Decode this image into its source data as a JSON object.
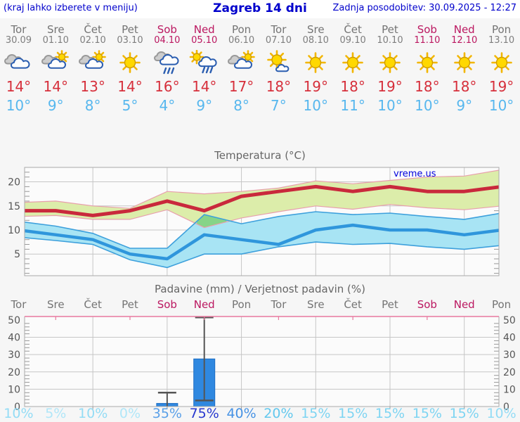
{
  "header": {
    "left_note": "(kraj lahko izberete v meniju)",
    "title": "Zagreb 14 dni",
    "updated": "Zadnja posodobitev: 30.09.2025 - 12:27"
  },
  "colors": {
    "header_blue": "#0000cc",
    "weekday": "#747474",
    "weekend": "#bb1760",
    "high_temp": "#d62f3b",
    "low_temp": "#57b7ee",
    "chart_title": "#666666",
    "axis_label": "#555555",
    "grid": "#c6c6c6",
    "plot_border": "#aaaaaa",
    "plot_bg": "#fbfbfb",
    "page_bg": "#f6f6f6",
    "max_band": "#dcedaa",
    "max_band_edge": "#e89fac",
    "max_line": "#c9293c",
    "min_band": "#a8e4f4",
    "min_band_edge": "#3da0dc",
    "min_line": "#2f96dc",
    "band_overlap": "#86d488",
    "bar_fill": "#2f88e0",
    "bar_edge": "#1f6fc4",
    "whisker": "#555555",
    "precip_top": "#e8799f",
    "watermark": "#0000dd"
  },
  "days": [
    {
      "name": "Tor",
      "date": "30.09",
      "weekend": false,
      "icon": "cloudy",
      "high": "14°",
      "low": "10°",
      "prob": "10%",
      "prob_color": "#93dcf5"
    },
    {
      "name": "Sre",
      "date": "01.10",
      "weekend": false,
      "icon": "sun-cloud",
      "high": "14°",
      "low": "9°",
      "prob": "5%",
      "prob_color": "#b0e6f8"
    },
    {
      "name": "Čet",
      "date": "02.10",
      "weekend": false,
      "icon": "sun-cloud",
      "high": "13°",
      "low": "8°",
      "prob": "10%",
      "prob_color": "#93dcf5"
    },
    {
      "name": "Pet",
      "date": "03.10",
      "weekend": false,
      "icon": "sunny",
      "high": "14°",
      "low": "5°",
      "prob": "0%",
      "prob_color": "#b0e6f8"
    },
    {
      "name": "Sob",
      "date": "04.10",
      "weekend": true,
      "icon": "rain",
      "high": "16°",
      "low": "4°",
      "prob": "35%",
      "prob_color": "#5aa0e8"
    },
    {
      "name": "Ned",
      "date": "05.10",
      "weekend": true,
      "icon": "sun-rain",
      "high": "14°",
      "low": "9°",
      "prob": "75%",
      "prob_color": "#2737cf"
    },
    {
      "name": "Pon",
      "date": "06.10",
      "weekend": false,
      "icon": "sun-cloud",
      "high": "17°",
      "low": "8°",
      "prob": "40%",
      "prob_color": "#4692e4"
    },
    {
      "name": "Tor",
      "date": "07.10",
      "weekend": false,
      "icon": "mostly-sunny",
      "high": "18°",
      "low": "7°",
      "prob": "20%",
      "prob_color": "#62c8ee"
    },
    {
      "name": "Sre",
      "date": "08.10",
      "weekend": false,
      "icon": "sunny",
      "high": "19°",
      "low": "10°",
      "prob": "15%",
      "prob_color": "#7dd4f2"
    },
    {
      "name": "Čet",
      "date": "09.10",
      "weekend": false,
      "icon": "sunny",
      "high": "18°",
      "low": "11°",
      "prob": "15%",
      "prob_color": "#7dd4f2"
    },
    {
      "name": "Pet",
      "date": "10.10",
      "weekend": false,
      "icon": "sunny",
      "high": "19°",
      "low": "10°",
      "prob": "15%",
      "prob_color": "#7dd4f2"
    },
    {
      "name": "Sob",
      "date": "11.10",
      "weekend": true,
      "icon": "sunny",
      "high": "18°",
      "low": "10°",
      "prob": "15%",
      "prob_color": "#7dd4f2"
    },
    {
      "name": "Ned",
      "date": "12.10",
      "weekend": true,
      "icon": "sunny",
      "high": "18°",
      "low": "9°",
      "prob": "15%",
      "prob_color": "#7dd4f2"
    },
    {
      "name": "Pon",
      "date": "13.10",
      "weekend": false,
      "icon": "sunny",
      "high": "19°",
      "low": "10°",
      "prob": "10%",
      "prob_color": "#93dcf5"
    }
  ],
  "chart_data": [
    {
      "type": "line",
      "title": "Temperatura (°C)",
      "watermark": "vreme.us",
      "categories": [
        "Tor",
        "Sre",
        "Čet",
        "Pet",
        "Sob",
        "Ned",
        "Pon",
        "Tor",
        "Sre",
        "Čet",
        "Pet",
        "Sob",
        "Ned",
        "Pon"
      ],
      "ylim": [
        0.5,
        23
      ],
      "yticks": [
        5,
        10,
        15,
        20
      ],
      "grid": true,
      "legend": "none",
      "series": [
        {
          "name": "max",
          "values": [
            14,
            14,
            13,
            14,
            16,
            14,
            17,
            18,
            19,
            18,
            19,
            18,
            18,
            19
          ]
        },
        {
          "name": "max_upper",
          "values": [
            15.7,
            16,
            15,
            14.5,
            18,
            17.5,
            18,
            18.7,
            20.2,
            19.6,
            20.3,
            21,
            21.2,
            22.5
          ]
        },
        {
          "name": "max_lower",
          "values": [
            12.8,
            13,
            12.2,
            12.2,
            14.2,
            10.5,
            12.5,
            13.8,
            15,
            14.3,
            15.3,
            14.6,
            14.2,
            15
          ]
        },
        {
          "name": "min",
          "values": [
            10,
            9,
            8,
            5,
            4,
            9,
            8,
            7,
            10,
            11,
            10,
            10,
            9,
            10
          ]
        },
        {
          "name": "min_upper",
          "values": [
            11.8,
            10.8,
            9.3,
            6.2,
            6.2,
            13.2,
            11.3,
            12.8,
            13.8,
            13.2,
            13.5,
            12.8,
            12.2,
            13.5
          ]
        },
        {
          "name": "min_lower",
          "values": [
            8.5,
            7.8,
            7,
            3.8,
            2.2,
            5,
            5,
            6.5,
            7.5,
            7,
            7.2,
            6.5,
            6,
            6.8
          ]
        }
      ]
    },
    {
      "type": "bar",
      "title": "Padavine (mm) / Verjetnost padavin (%)",
      "categories": [
        "Tor",
        "Sre",
        "Čet",
        "Pet",
        "Sob",
        "Ned",
        "Pon",
        "Tor",
        "Sre",
        "Čet",
        "Pet",
        "Sob",
        "Ned",
        "Pon"
      ],
      "ylim": [
        0,
        52
      ],
      "yticks": [
        0,
        10,
        20,
        30,
        40,
        50
      ],
      "grid": true,
      "bars": [
        0,
        0,
        0,
        0,
        1.8,
        27.5,
        0,
        0,
        0,
        0,
        0,
        0,
        0,
        0
      ],
      "whisker_low": [
        null,
        null,
        null,
        null,
        0,
        3.5,
        null,
        null,
        null,
        null,
        null,
        null,
        null,
        null
      ],
      "whisker_high": [
        null,
        null,
        null,
        null,
        8,
        51.5,
        null,
        null,
        null,
        null,
        null,
        null,
        null,
        null
      ],
      "probabilities": [
        "10%",
        "5%",
        "10%",
        "0%",
        "35%",
        "75%",
        "40%",
        "20%",
        "15%",
        "15%",
        "15%",
        "15%",
        "15%",
        "10%"
      ]
    }
  ]
}
